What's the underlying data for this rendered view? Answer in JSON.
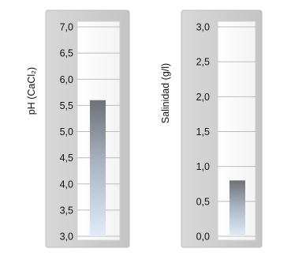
{
  "chart_data": [
    {
      "type": "bar",
      "categories": [
        ""
      ],
      "values": [
        5.6
      ],
      "xlabel": "",
      "ylabel": "pH (CaCl₂)",
      "ylim": [
        3.0,
        7.0
      ],
      "yticks": [
        "3,0",
        "3,5",
        "4,0",
        "4,5",
        "5,0",
        "5,5",
        "6,0",
        "6,5",
        "7,0"
      ],
      "grid": true,
      "colors": {
        "bar_top": "#6e7177",
        "bar_bottom": "#e2ecf8",
        "frame": "#c9c9c9",
        "grid": "#bdbdbd"
      }
    },
    {
      "type": "bar",
      "categories": [
        ""
      ],
      "values": [
        0.8
      ],
      "xlabel": "",
      "ylabel": "Salinidad (g/l)",
      "ylim": [
        0.0,
        3.0
      ],
      "yticks": [
        "0,0",
        "0,5",
        "1,0",
        "1,5",
        "2,0",
        "2,5",
        "3,0"
      ],
      "grid": true,
      "colors": {
        "bar_top": "#6e7177",
        "bar_bottom": "#e2ecf8",
        "frame": "#c9c9c9",
        "grid": "#bdbdbd"
      }
    }
  ]
}
